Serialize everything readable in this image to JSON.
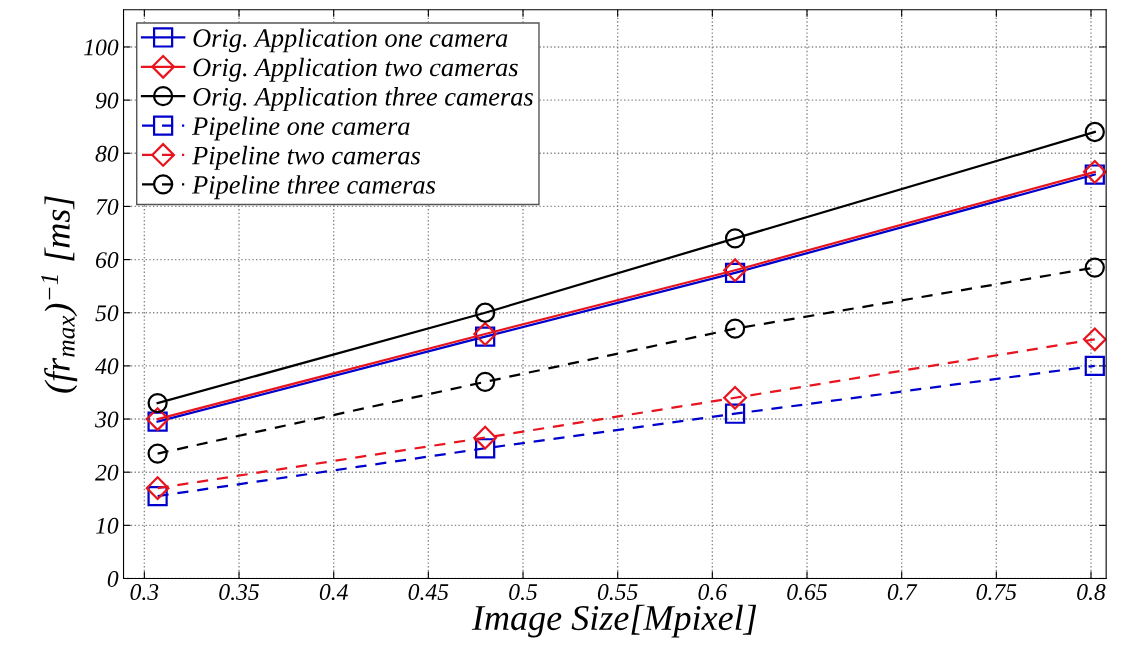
{
  "chart_data": {
    "type": "line",
    "xlabel": "Image Size[Mpixel]",
    "ylabel": "(fr$_{max}$)$^{−1}$ [ms]",
    "x": [
      0.307,
      0.48,
      0.612,
      0.802
    ],
    "xlim": [
      0.289,
      0.808
    ],
    "xticks": [
      0.3,
      0.35,
      0.4,
      0.45,
      0.5,
      0.55,
      0.6,
      0.65,
      0.7,
      0.75,
      0.8
    ],
    "ylim": [
      0,
      107
    ],
    "yticks": [
      0,
      10,
      20,
      30,
      40,
      50,
      60,
      70,
      80,
      90,
      100
    ],
    "grid": true,
    "legend": "top left",
    "series": [
      {
        "name": "Orig. Application one camera",
        "color": "#0000cc",
        "marker": "square",
        "line_style": "solid",
        "values": [
          29.5,
          45.5,
          57.5,
          76
        ]
      },
      {
        "name": "Orig. Application two cameras",
        "color": "#e8141e",
        "marker": "diamond",
        "line_style": "solid",
        "values": [
          30,
          46,
          58,
          76.5
        ]
      },
      {
        "name": "Orig. Application three cameras",
        "color": "#000000",
        "marker": "circle",
        "line_style": "solid",
        "values": [
          33,
          50,
          64,
          84
        ]
      },
      {
        "name": "Pipeline one camera",
        "color": "#0000cc",
        "marker": "square",
        "line_style": "dashed",
        "values": [
          15.5,
          24.5,
          31,
          40
        ]
      },
      {
        "name": "Pipeline two cameras",
        "color": "#e8141e",
        "marker": "diamond",
        "line_style": "dashed",
        "values": [
          17,
          26.5,
          34,
          45
        ]
      },
      {
        "name": "Pipeline three cameras",
        "color": "#000000",
        "marker": "circle",
        "line_style": "dashed",
        "values": [
          23.5,
          37,
          47,
          58.5
        ]
      }
    ]
  }
}
